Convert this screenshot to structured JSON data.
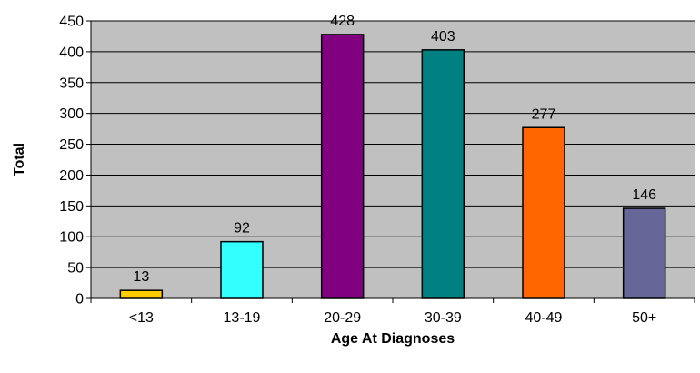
{
  "chart_data": {
    "type": "bar",
    "title": "",
    "xlabel": "Age At Diagnoses",
    "ylabel": "Total",
    "categories": [
      "<13",
      "13-19",
      "20-29",
      "30-39",
      "40-49",
      "50+"
    ],
    "values": [
      13,
      92,
      428,
      403,
      277,
      146
    ],
    "data_labels": [
      "13",
      "92",
      "428",
      "403",
      "277",
      "146"
    ],
    "bar_colors": [
      "#FFCC00",
      "#33FFFF",
      "#800080",
      "#008080",
      "#FF6600",
      "#666699"
    ],
    "ylim": [
      0,
      450
    ],
    "yticks": [
      0,
      50,
      100,
      150,
      200,
      250,
      300,
      350,
      400,
      450
    ],
    "grid": true,
    "plot_background": "#C0C0C0",
    "legend": "none"
  }
}
